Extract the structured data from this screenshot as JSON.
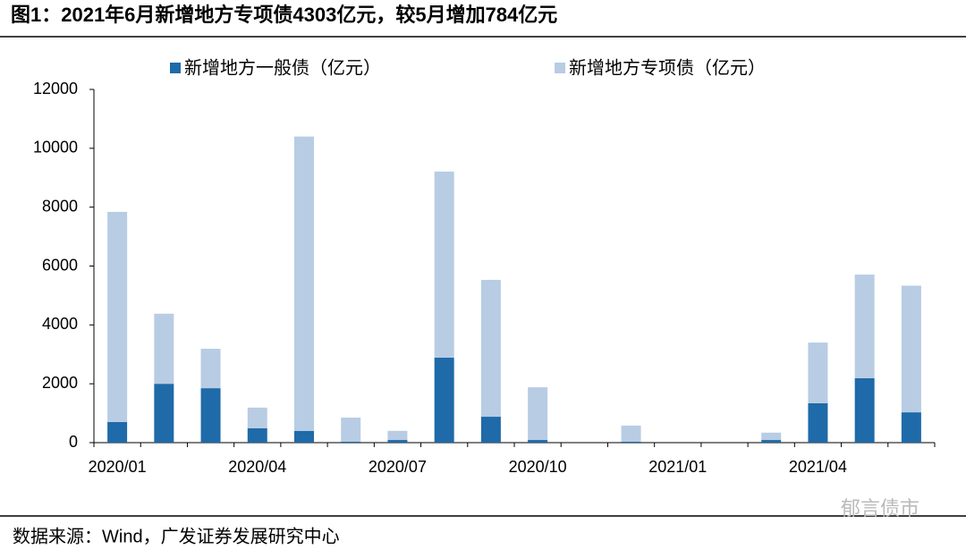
{
  "chart_data": {
    "type": "stacked_bar",
    "title": "图1：2021年6月新增地方专项债4303亿元，较5月增加784亿元",
    "source": "数据来源：Wind，广发证券发展研究中心",
    "watermark": "郁言债市",
    "categories": [
      "2020/01",
      null,
      null,
      "2020/04",
      null,
      null,
      "2020/07",
      null,
      null,
      "2020/10",
      null,
      null,
      "2021/01",
      null,
      null,
      "2021/04",
      null,
      null
    ],
    "series": [
      {
        "name": "新增地方一般债（亿元）",
        "color": "#1f6aa8",
        "values": [
          700,
          2000,
          1850,
          490,
          400,
          30,
          90,
          2890,
          880,
          90,
          0,
          30,
          0,
          0,
          90,
          1340,
          2190,
          1030
        ]
      },
      {
        "name": "新增地方专项债（亿元）",
        "color": "#b8cce4",
        "values": [
          7140,
          2380,
          1340,
          700,
          10000,
          820,
          310,
          6320,
          4650,
          1790,
          0,
          550,
          0,
          0,
          250,
          2060,
          3519,
          4303
        ]
      }
    ],
    "ylim": [
      0,
      12000
    ],
    "yticks": [
      0,
      2000,
      4000,
      6000,
      8000,
      10000,
      12000
    ],
    "legend": "top"
  }
}
